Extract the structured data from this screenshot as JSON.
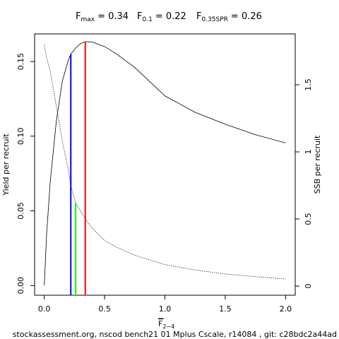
{
  "chart_data": {
    "type": "line",
    "reference_points": [
      {
        "symbol": "F",
        "subscript": "max",
        "value": 0.34,
        "value_label": "= 0.34",
        "top": 0.1633,
        "axis": "y",
        "color": "#ff0000"
      },
      {
        "symbol": "F",
        "subscript": "0.1",
        "value": 0.22,
        "value_label": "= 0.22",
        "top": 0.155,
        "axis": "y",
        "color": "#0000ff"
      },
      {
        "symbol": "F",
        "subscript": "0.35SPR",
        "value": 0.26,
        "value_label": "= 0.26",
        "top": 0.62,
        "axis": "y2",
        "color": "#00ff00"
      }
    ],
    "xlabel": {
      "text": "F",
      "subscript": "2−4"
    },
    "ylabel": "Yield per recruit",
    "y2label": "SSB per recruit",
    "footer": "stockassessment.org, nscod bench21 01 Mplus Cscale, r14084 , git: c28bdc2a44ad",
    "x": [
      0,
      0.02,
      0.05,
      0.1,
      0.15,
      0.2,
      0.22,
      0.26,
      0.3,
      0.34,
      0.4,
      0.5,
      0.6,
      0.75,
      1.0,
      1.25,
      1.5,
      1.75,
      2.0
    ],
    "series": [
      {
        "name": "Yield per recruit",
        "color": "#000000",
        "dash": "solid",
        "axis": "y",
        "values": [
          0,
          0.035,
          0.07,
          0.11,
          0.137,
          0.151,
          0.155,
          0.159,
          0.162,
          0.1633,
          0.163,
          0.16,
          0.155,
          0.146,
          0.127,
          0.116,
          0.108,
          0.101,
          0.0955
        ]
      },
      {
        "name": "SSB per recruit",
        "color": "#000000",
        "dash": "dotted",
        "axis": "y2",
        "values": [
          1.8,
          1.7,
          1.6,
          1.34,
          1.08,
          0.86,
          0.75,
          0.62,
          0.56,
          0.5,
          0.43,
          0.34,
          0.29,
          0.23,
          0.16,
          0.12,
          0.09,
          0.07,
          0.053
        ]
      }
    ],
    "xlim": [
      -0.08,
      2.08
    ],
    "xticks": [
      {
        "value": 0,
        "label": "0.0"
      },
      0.5,
      {
        "value": 1,
        "label": "1.0"
      },
      1.5,
      {
        "value": 2,
        "label": "2.0"
      }
    ],
    "ylim": [
      -0.0065,
      0.1685
    ],
    "yticks": [
      {
        "value": 0,
        "label": "0.00"
      },
      0.05,
      {
        "value": 0.1,
        "label": "0.10"
      },
      0.15
    ],
    "y2lim": [
      -0.068,
      1.879
    ],
    "y2ticks": [
      0,
      0.5,
      1,
      1.5
    ]
  }
}
